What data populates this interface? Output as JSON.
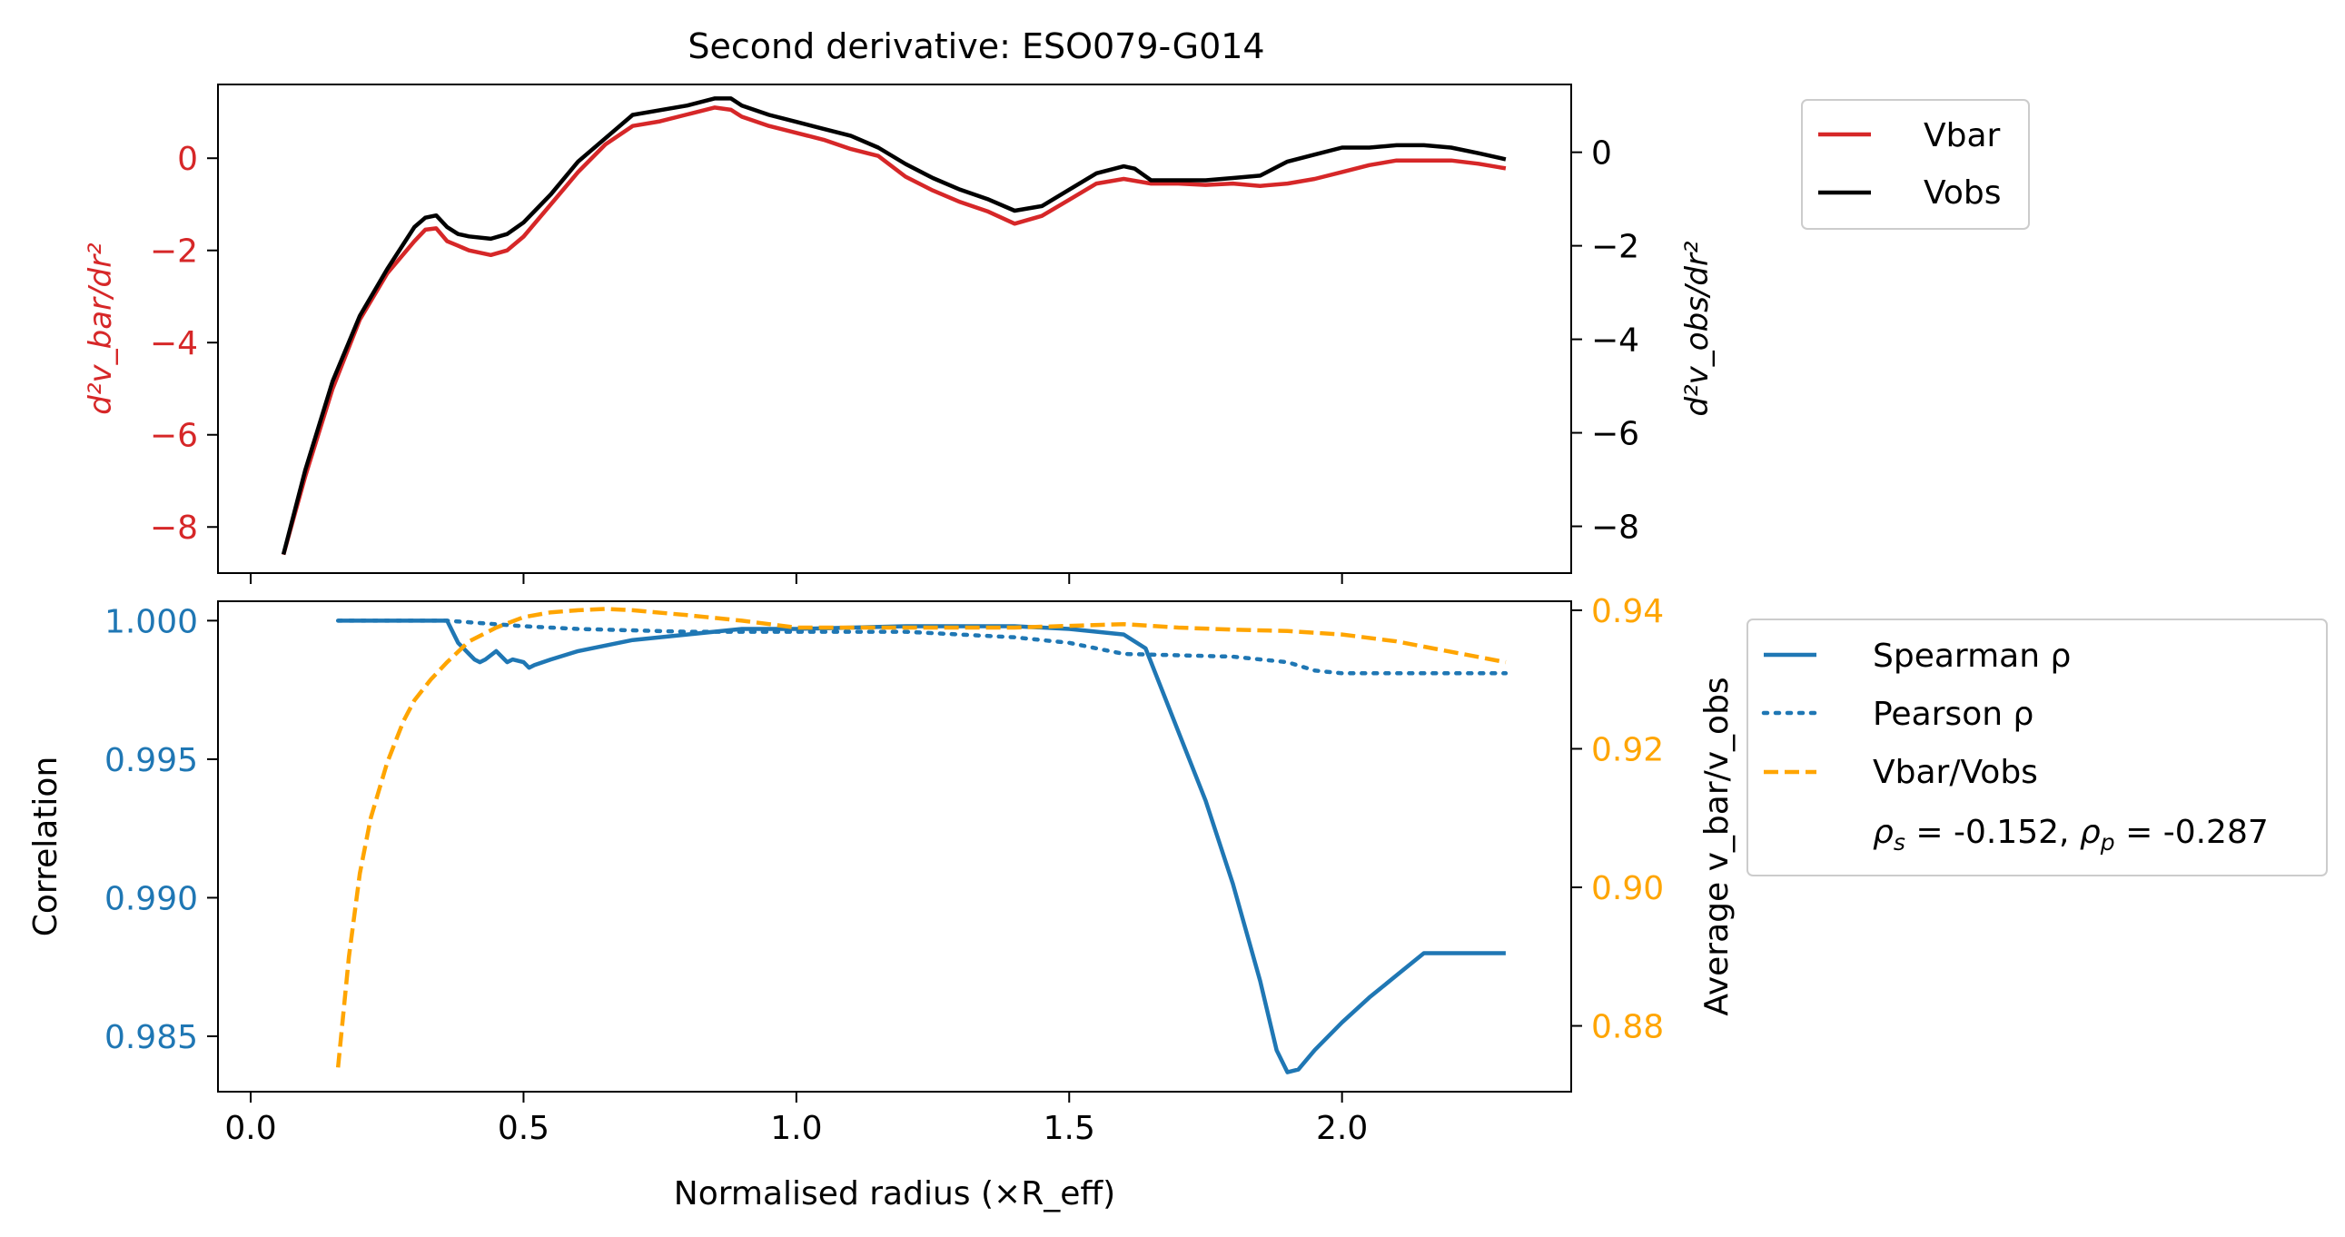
{
  "colors": {
    "vbar": "#d62728",
    "vobs": "#000000",
    "spearman": "#1f77b4",
    "ratio": "#ffa500",
    "left_axis_top": "#d62728",
    "left_axis_bottom": "#1f77b4",
    "right_axis_bottom": "#ffa500"
  },
  "chart_data": [
    {
      "type": "line",
      "title": "Second derivative: ESO079-G014",
      "ylabel_left": "d²v_bar/dr²",
      "ylabel_right": "d²v_obs/dr²",
      "xlim": [
        -0.06,
        2.42
      ],
      "ylim_left": [
        -9.0,
        1.6
      ],
      "ylim_right": [
        -9.0,
        1.45
      ],
      "yticks_left": [
        "0",
        "−2",
        "−4",
        "−6",
        "−8"
      ],
      "yticks_left_values": [
        0,
        -2,
        -4,
        -6,
        -8
      ],
      "yticks_right": [
        "0",
        "−2",
        "−4",
        "−6",
        "−8"
      ],
      "yticks_right_values": [
        0,
        -2,
        -4,
        -6,
        -8
      ],
      "legend": {
        "position": "outside-right-top",
        "entries": [
          "Vbar",
          "Vobs"
        ]
      },
      "series": [
        {
          "name": "Vbar",
          "axis": "left",
          "x": [
            0.06,
            0.1,
            0.15,
            0.2,
            0.25,
            0.3,
            0.32,
            0.34,
            0.36,
            0.38,
            0.4,
            0.44,
            0.47,
            0.5,
            0.55,
            0.6,
            0.65,
            0.7,
            0.75,
            0.8,
            0.85,
            0.88,
            0.9,
            0.95,
            1.0,
            1.05,
            1.1,
            1.15,
            1.2,
            1.25,
            1.3,
            1.35,
            1.4,
            1.45,
            1.5,
            1.55,
            1.6,
            1.65,
            1.7,
            1.75,
            1.8,
            1.85,
            1.9,
            1.95,
            2.0,
            2.05,
            2.1,
            2.15,
            2.2,
            2.25,
            2.3
          ],
          "y": [
            -8.6,
            -6.9,
            -5.0,
            -3.5,
            -2.5,
            -1.8,
            -1.55,
            -1.52,
            -1.8,
            -1.9,
            -2.0,
            -2.1,
            -2.0,
            -1.7,
            -1.0,
            -0.3,
            0.3,
            0.7,
            0.8,
            0.95,
            1.1,
            1.05,
            0.9,
            0.7,
            0.55,
            0.4,
            0.2,
            0.05,
            -0.4,
            -0.7,
            -0.95,
            -1.15,
            -1.42,
            -1.25,
            -0.9,
            -0.55,
            -0.45,
            -0.55,
            -0.55,
            -0.58,
            -0.55,
            -0.6,
            -0.55,
            -0.45,
            -0.3,
            -0.15,
            -0.05,
            -0.05,
            -0.05,
            -0.12,
            -0.22
          ]
        },
        {
          "name": "Vobs",
          "axis": "right",
          "x": [
            0.06,
            0.1,
            0.15,
            0.2,
            0.25,
            0.3,
            0.32,
            0.34,
            0.36,
            0.38,
            0.4,
            0.44,
            0.47,
            0.5,
            0.55,
            0.6,
            0.65,
            0.7,
            0.75,
            0.8,
            0.85,
            0.88,
            0.9,
            0.95,
            1.0,
            1.05,
            1.1,
            1.15,
            1.2,
            1.25,
            1.3,
            1.35,
            1.4,
            1.45,
            1.5,
            1.55,
            1.6,
            1.62,
            1.65,
            1.7,
            1.75,
            1.8,
            1.85,
            1.9,
            1.95,
            2.0,
            2.05,
            2.1,
            2.15,
            2.2,
            2.25,
            2.3
          ],
          "y": [
            -8.6,
            -6.8,
            -4.9,
            -3.5,
            -2.5,
            -1.6,
            -1.4,
            -1.35,
            -1.6,
            -1.75,
            -1.8,
            -1.85,
            -1.75,
            -1.5,
            -0.9,
            -0.2,
            0.3,
            0.8,
            0.9,
            1.0,
            1.15,
            1.15,
            1.0,
            0.8,
            0.65,
            0.5,
            0.35,
            0.1,
            -0.25,
            -0.55,
            -0.8,
            -1.0,
            -1.25,
            -1.15,
            -0.8,
            -0.45,
            -0.3,
            -0.35,
            -0.6,
            -0.6,
            -0.6,
            -0.55,
            -0.5,
            -0.2,
            -0.05,
            0.1,
            0.1,
            0.15,
            0.15,
            0.1,
            -0.02,
            -0.15
          ]
        }
      ]
    },
    {
      "type": "line",
      "xlabel": "Normalised radius (×R_eff)",
      "ylabel_left": "Correlation",
      "ylabel_right": "Average v_bar/v_obs",
      "xlim": [
        -0.06,
        2.42
      ],
      "ylim_left": [
        0.983,
        1.0007
      ],
      "ylim_right": [
        0.8705,
        0.9413
      ],
      "xticks": [
        "0.0",
        "0.5",
        "1.0",
        "1.5",
        "2.0"
      ],
      "xticks_values": [
        0.0,
        0.5,
        1.0,
        1.5,
        2.0
      ],
      "yticks_left": [
        "1.000",
        "0.995",
        "0.990",
        "0.985"
      ],
      "yticks_left_values": [
        1.0,
        0.995,
        0.99,
        0.985
      ],
      "yticks_right": [
        "0.94",
        "0.92",
        "0.90",
        "0.88"
      ],
      "yticks_right_values": [
        0.94,
        0.92,
        0.9,
        0.88
      ],
      "legend": {
        "position": "outside-right",
        "entries": [
          "Spearman ρ",
          "Pearson ρ",
          "Vbar/Vobs"
        ],
        "annotation": {
          "rho_s": "-0.152",
          "rho_p": "-0.287"
        }
      },
      "series": [
        {
          "name": "Spearman ρ",
          "axis": "left",
          "style": "solid",
          "x": [
            0.16,
            0.36,
            0.38,
            0.4,
            0.41,
            0.42,
            0.43,
            0.45,
            0.46,
            0.47,
            0.48,
            0.5,
            0.51,
            0.52,
            0.55,
            0.6,
            0.7,
            0.8,
            0.9,
            1.0,
            1.2,
            1.4,
            1.5,
            1.6,
            1.64,
            1.66,
            1.7,
            1.75,
            1.8,
            1.85,
            1.88,
            1.9,
            1.92,
            1.95,
            2.0,
            2.05,
            2.1,
            2.15,
            2.2,
            2.3
          ],
          "y": [
            1.0,
            1.0,
            0.9992,
            0.9988,
            0.9986,
            0.9985,
            0.9986,
            0.9989,
            0.9987,
            0.9985,
            0.9986,
            0.9985,
            0.9983,
            0.9984,
            0.9986,
            0.9989,
            0.9993,
            0.9995,
            0.9997,
            0.9997,
            0.9998,
            0.9998,
            0.9997,
            0.9995,
            0.999,
            0.998,
            0.996,
            0.9935,
            0.9905,
            0.987,
            0.9845,
            0.9837,
            0.9838,
            0.9845,
            0.9855,
            0.9864,
            0.9872,
            0.988,
            0.988,
            0.988
          ]
        },
        {
          "name": "Pearson ρ",
          "axis": "left",
          "style": "dotted",
          "x": [
            0.16,
            0.36,
            0.5,
            0.6,
            0.8,
            1.0,
            1.2,
            1.4,
            1.5,
            1.55,
            1.6,
            1.8,
            1.9,
            1.95,
            2.0,
            2.1,
            2.3
          ],
          "y": [
            1.0,
            1.0,
            0.9998,
            0.9997,
            0.9996,
            0.9996,
            0.9996,
            0.9994,
            0.9992,
            0.999,
            0.9988,
            0.9987,
            0.9985,
            0.9982,
            0.9981,
            0.9981,
            0.9981
          ]
        },
        {
          "name": "Vbar/Vobs",
          "axis": "right",
          "style": "dashed",
          "x": [
            0.16,
            0.18,
            0.2,
            0.22,
            0.25,
            0.28,
            0.3,
            0.33,
            0.36,
            0.4,
            0.45,
            0.5,
            0.55,
            0.6,
            0.65,
            0.7,
            0.8,
            0.9,
            1.0,
            1.1,
            1.2,
            1.4,
            1.6,
            1.7,
            1.8,
            1.9,
            2.0,
            2.1,
            2.2,
            2.3
          ],
          "y": [
            0.874,
            0.89,
            0.902,
            0.91,
            0.918,
            0.924,
            0.927,
            0.93,
            0.9325,
            0.9355,
            0.9375,
            0.939,
            0.9397,
            0.94,
            0.9402,
            0.94,
            0.9393,
            0.9385,
            0.9375,
            0.9375,
            0.9375,
            0.9375,
            0.938,
            0.9375,
            0.9372,
            0.937,
            0.9365,
            0.9355,
            0.934,
            0.9325
          ]
        }
      ]
    }
  ]
}
